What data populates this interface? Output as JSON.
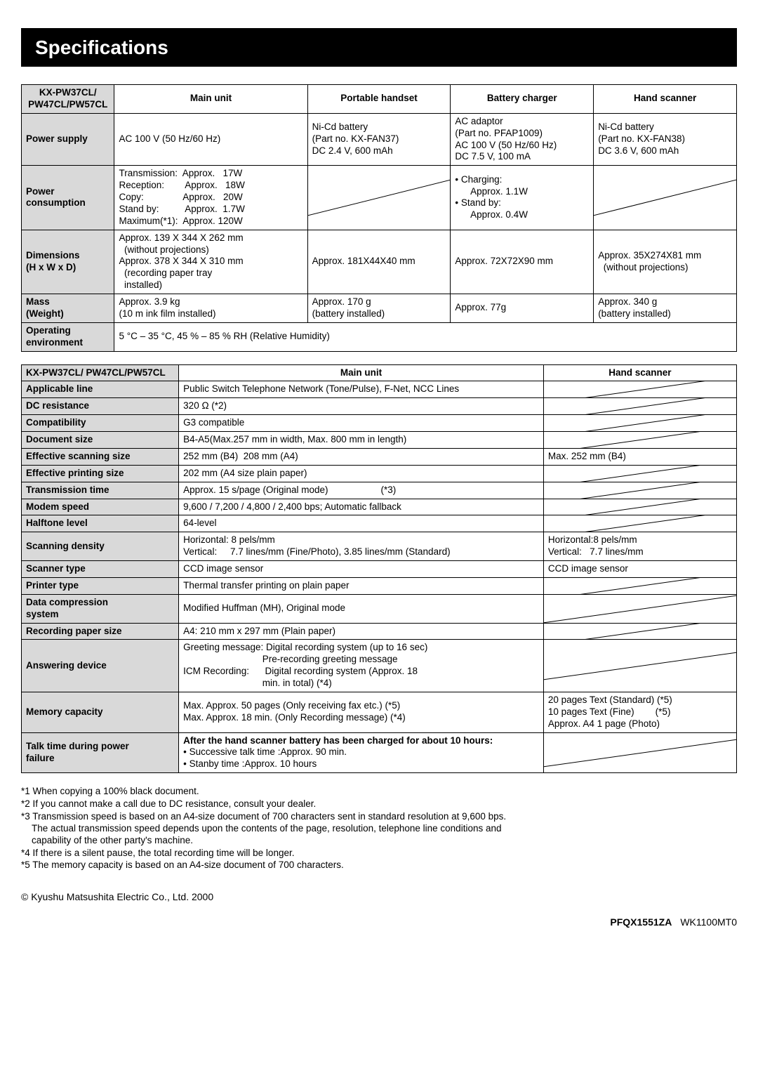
{
  "title": "Specifications",
  "table1": {
    "headers": [
      "KX-PW37CL/\nPW47CL/PW57CL",
      "Main unit",
      "Portable handset",
      "Battery charger",
      "Hand scanner"
    ],
    "rows": [
      {
        "label": "Power supply",
        "main": "AC 100 V (50 Hz/60 Hz)",
        "handset": "Ni-Cd battery\n(Part no. KX-FAN37)\nDC 2.4 V, 600 mAh",
        "charger": "AC adaptor\n(Part no. PFAP1009)\nAC 100 V (50 Hz/60 Hz)\nDC 7.5 V, 100 mA",
        "scanner": "Ni-Cd battery\n(Part no. KX-FAN38)\nDC 3.6 V, 600 mAh"
      },
      {
        "label": "Power\nconsumption",
        "main": "Transmission:  Approx.   17W\nReception:        Approx.   18W\nCopy:               Approx.   20W\nStand by:          Approx.  1.7W\nMaximum(*1):  Approx. 120W",
        "handset": "",
        "charger": "• Charging:\n      Approx. 1.1W\n• Stand by:\n      Approx. 0.4W",
        "scanner": ""
      },
      {
        "label": "Dimensions\n(H x W x D)",
        "main": "Approx. 139 X 344 X 262 mm\n  (without projections)\nApprox. 378 X 344 X 310 mm\n  (recording paper tray\n  installed)",
        "handset": "Approx. 181X44X40 mm",
        "charger": "Approx. 72X72X90 mm",
        "scanner": "Approx. 35X274X81 mm\n  (without projections)"
      },
      {
        "label": "Mass\n(Weight)",
        "main": "Approx. 3.9 kg\n(10 m ink film installed)",
        "handset": "Approx. 170 g\n(battery installed)",
        "charger": "Approx. 77g",
        "scanner": "Approx. 340 g\n(battery installed)"
      },
      {
        "label": "Operating\nenvironment",
        "span": "5 °C – 35 °C, 45 % – 85 % RH  (Relative Humidity)"
      }
    ]
  },
  "table2": {
    "headers": [
      "KX-PW37CL/ PW47CL/PW57CL",
      "Main unit",
      "Hand scanner"
    ],
    "rows": [
      {
        "label": "Applicable line",
        "main": "Public Switch Telephone Network (Tone/Pulse), F-Net, NCC Lines",
        "scanner": "diag"
      },
      {
        "label": "DC resistance",
        "main": "320 Ω (*2)",
        "scanner": "diag"
      },
      {
        "label": "Compatibility",
        "main": "G3 compatible",
        "scanner": "diag"
      },
      {
        "label": "Document size",
        "main": "B4-A5(Max.257 mm in width, Max. 800 mm in length)",
        "scanner": "diag"
      },
      {
        "label": "Effective scanning size",
        "main": "252 mm (B4)  208 mm (A4)",
        "scanner": "Max. 252 mm (B4)"
      },
      {
        "label": "Effective printing size",
        "main": "202 mm (A4 size plain paper)",
        "scanner": "diag"
      },
      {
        "label": "Transmission time",
        "main": "Approx. 15 s/page (Original mode)                    (*3)",
        "scanner": "diag"
      },
      {
        "label": "Modem speed",
        "main": "9,600 / 7,200 / 4,800 / 2,400 bps; Automatic fallback",
        "scanner": "diag"
      },
      {
        "label": "Halftone level",
        "main": "64-level",
        "scanner": "diag"
      },
      {
        "label": "Scanning density",
        "main": "Horizontal: 8 pels/mm\nVertical:     7.7 lines/mm (Fine/Photo), 3.85 lines/mm (Standard)",
        "scanner": "Horizontal:8 pels/mm\nVertical:   7.7 lines/mm"
      },
      {
        "label": "Scanner type",
        "main": "CCD image sensor",
        "scanner": "CCD image sensor"
      },
      {
        "label": "Printer type",
        "main": "Thermal transfer printing on plain paper",
        "scanner": "diag"
      },
      {
        "label": "Data compression\nsystem",
        "main": "Modified Huffman (MH), Original mode",
        "scanner": "diag"
      },
      {
        "label": "Recording paper size",
        "main": "A4: 210 mm x 297 mm (Plain paper)",
        "scanner": "diag"
      },
      {
        "label": "Answering device",
        "main": "Greeting message: Digital recording system (up to 16 sec)\n                              Pre-recording greeting message\nICM Recording:      Digital recording system (Approx. 18\n                              min. in total) (*4)",
        "scanner": "diag"
      },
      {
        "label": "Memory capacity",
        "main": "Max. Approx. 50 pages (Only receiving fax etc.) (*5)\nMax. Approx. 18 min. (Only Recording message) (*4)",
        "scanner": "20 pages Text (Standard) (*5)\n10 pages Text (Fine)        (*5)\nApprox. A4 1 page (Photo)"
      },
      {
        "label": "Talk time during power\nfailure",
        "main_html": "<b>After the hand scanner battery has been charged for about 10 hours:</b>\n• Successive talk time    :Approx. 90 min.\n• Stanby time                  :Approx. 10 hours",
        "scanner": "diag"
      }
    ]
  },
  "footnotes": [
    "*1 When copying a 100% black document.",
    "*2 If you cannot make a call due to DC resistance, consult your dealer.",
    "*3 Transmission speed is based on an A4-size document of 700 characters sent in standard resolution at 9,600 bps.\n    The actual transmission speed depends upon the contents of the page, resolution, telephone line conditions and\n    capability of the other party's machine.",
    "*4 If there is a silent pause, the total recording time will be longer.",
    "*5 The memory capacity is based on an A4-size document of 700 characters."
  ],
  "copyright": "© Kyushu Matsushita Electric Co., Ltd. 2000",
  "pagecode_bold": "PFQX1551ZA",
  "pagecode_rest": "WK1100MT0",
  "colors": {
    "header_bg": "#000000",
    "header_fg": "#ffffff",
    "rowhead_bg": "#d9d9d9",
    "border": "#000000"
  },
  "col_widths_t1": [
    "13%",
    "27%",
    "20%",
    "20%",
    "20%"
  ],
  "col_widths_t2": [
    "22%",
    "51%",
    "27%"
  ]
}
